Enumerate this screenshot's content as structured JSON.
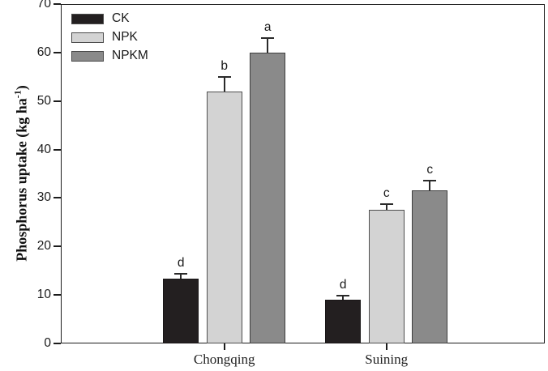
{
  "figure": {
    "ylabel": {
      "prefix": "Phosphorus uptake (kg ha",
      "superscript": "-1",
      "suffix": ")"
    }
  },
  "chart_data": {
    "type": "bar",
    "title": "",
    "xlabel": "",
    "ylabel": "Phosphorus uptake (kg ha^-1)",
    "categories": [
      "Chongqing",
      "Suining"
    ],
    "series": [
      {
        "name": "CK",
        "color": "#231f20",
        "border_color": "#191617",
        "values": [
          13.4,
          9.0
        ],
        "errors": [
          0.9,
          0.9
        ],
        "sig_letters": [
          "d",
          "d"
        ]
      },
      {
        "name": "NPK",
        "color": "#d3d3d3",
        "border_color": "#4f4f4f",
        "values": [
          52.0,
          27.6
        ],
        "errors": [
          2.9,
          1.2
        ],
        "sig_letters": [
          "b",
          "c"
        ]
      },
      {
        "name": "NPKM",
        "color": "#8a8a8a",
        "border_color": "#3e3e3e",
        "values": [
          60.0,
          31.5
        ],
        "errors": [
          2.9,
          2.0
        ],
        "sig_letters": [
          "a",
          "c"
        ]
      }
    ],
    "ylim": [
      0,
      70
    ],
    "yticks": [
      0,
      10,
      20,
      30,
      40,
      50,
      60,
      70
    ],
    "grid": false,
    "legend_position": "top-left",
    "error_bars": "upper-only",
    "frame": "full-box"
  }
}
